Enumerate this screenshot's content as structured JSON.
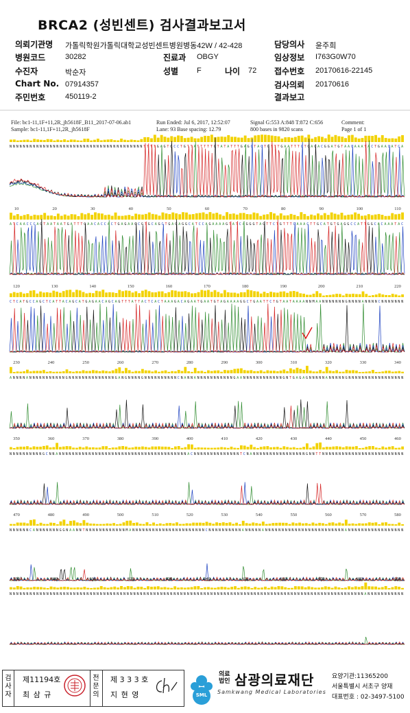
{
  "report": {
    "title": "BRCA2 (성빈센트) 검사결과보고서",
    "fields": {
      "institution_label": "의뢰기관명",
      "institution_value": "가톨릭학원가톨릭대학교성빈센트병원",
      "ward_label": "병동",
      "ward_value": "42W / 42-428",
      "physician_label": "담당의사",
      "physician_value": "윤주희",
      "hospital_code_label": "병원코드",
      "hospital_code_value": "30282",
      "dept_label": "진료과",
      "dept_value": "OBGY",
      "clinical_info_label": "임상정보",
      "clinical_info_value": "I763G0W70",
      "recipient_label": "수진자",
      "recipient_value": "박순자",
      "sex_label": "성별",
      "sex_value": "F",
      "age_label": "나이",
      "age_value": "72",
      "reception_no_label": "접수번호",
      "reception_no_value": "20170616-22145",
      "chart_no_label": "Chart No.",
      "chart_no_value": "07914357",
      "test_request_label": "검사의뢰",
      "test_request_value": "20170616",
      "resident_no_label": "주민번호",
      "resident_no_value": "450119-2",
      "result_report_label": "결과보고",
      "result_report_value": ""
    }
  },
  "trace": {
    "file_line": "File: bc1-11,1F+11,2R_jh5618F_B11_2017-07-06.ab1",
    "run_line": "Run Ended: Jul 6, 2017, 12:52:07",
    "signal_line": "Signal G:553 A:848 T:872 C:656",
    "comment_line": "Comment:",
    "sample_line": "Sample: bc1-11,1F+11,2R_jh5618F",
    "lane_line": "Lane: 93   Base spacing: 12.79",
    "bases_line": "800 bases in 9820 scans",
    "page_line": "Page 1 of 1",
    "sequence_rows": [
      "NNNNNNNNNNNNNNNNNNNNNNNNNNNNNNNNNNNNNNNNTTTTGAGTGCCTGTTATTTTTGTATATTTGAGCTACTGTTTGAATTTCTGAGACGGATGTAACAAATACTGAACATCA",
      "ATCAACCCAGTAATAATGATTTGAACACCACTGAGAAGCGTGCAGCTGAGAGGCATCCAGAAAAGTATCAGGGTAGTTCTGTTTCAAACTTGCATGTGAGGCCATTGGCACAAATAC",
      "CTCATGCCAGCTCATTACAGCATGAGAACAGCAGTTTATTACTCACTAAAGACAGAATGAATGTAGAAAAGGCTGAATTCTGTAATAAAANNMAANNNNNNNGNNNNANNNNCNNNNNNN",
      "ANNNNANNNNNNNNNNNGNNNNNNNNNNNNNNGANGNNNNGNNNNNNNNNNCNANNANNNNNNNNNNNGAANNNNNNNNNNNNGNTGAGAGNNNNNANNNNNGNNNNNNNNNNNNNNNNN",
      "NNNNNNNNNNGCNNANNNNNNNNNNNNNNNNNNNNNNNNNNNNNNNNNNNNNNNACNNNNNNNNNNNNNNTCNANNNNNNNNNNNNNNNNGNNTTNNNNNNNNNNNNNNNNNNNNNNNNN",
      "NNNNNNCANNNNNNNGGNAANNTNNNNNNNNNNNNMANNNNNNNNNNNNNNNNNNNNNNCNNNNNNNNNNANNNNNANNNNNNNNNNNNNNNNNNNNNNNNANNNNNNNNNNNNNNNNN",
      "NNNNNNNNNNNNNNNNNNNNNNNNNNNNNNNNNNNNNNNNNNNNNNNNNNNNNNNNNNNNNNNNNNNNNNNNNNNNNNNNNNNNNNNNNNNNNNNNNNNNNNNNNNANNNNNNNNNNN"
    ],
    "base_positions": [
      [
        "10",
        "20",
        "30",
        "40",
        "50",
        "60",
        "70",
        "80",
        "90",
        "100",
        "110"
      ],
      [
        "120",
        "130",
        "140",
        "150",
        "160",
        "170",
        "180",
        "190",
        "200",
        "210",
        "220"
      ],
      [
        "230",
        "240",
        "250",
        "260",
        "270",
        "280",
        "290",
        "300",
        "310",
        "320",
        "330",
        "340"
      ],
      [
        "350",
        "360",
        "370",
        "380",
        "390",
        "400",
        "410",
        "420",
        "430",
        "440",
        "450",
        "460"
      ],
      [
        "470",
        "480",
        "490",
        "500",
        "510",
        "520",
        "530",
        "540",
        "550",
        "560",
        "570",
        "580"
      ],
      [
        "590",
        "600",
        "610",
        "620",
        "630",
        "640",
        "650",
        "660",
        "670",
        "680",
        "690"
      ],
      [
        "700",
        "710",
        "720",
        "730",
        "740",
        "750",
        "760",
        "770",
        "780",
        "790",
        "800"
      ]
    ],
    "colors": {
      "A": "#2e8b2e",
      "C": "#1a3fbf",
      "G": "#111111",
      "T": "#d42020",
      "quality": "#f2d200"
    }
  },
  "footer": {
    "examiner_label": "검사자",
    "examiner_no": "제11194호",
    "examiner_name": "최 삼 규",
    "specialist_label": "전문의",
    "specialist_no": "제 3 3 3 호",
    "specialist_name": "지 현 영",
    "foundation_badge": "의료법인",
    "logo_text": "SML",
    "org_name": "삼광의료재단",
    "org_english": "Samkwang Medical Laboratories",
    "care_code": "요양기관:11365200",
    "address": "서울특별시 서초구 양재",
    "phone": "대표번호 : 02-3497-5100"
  }
}
